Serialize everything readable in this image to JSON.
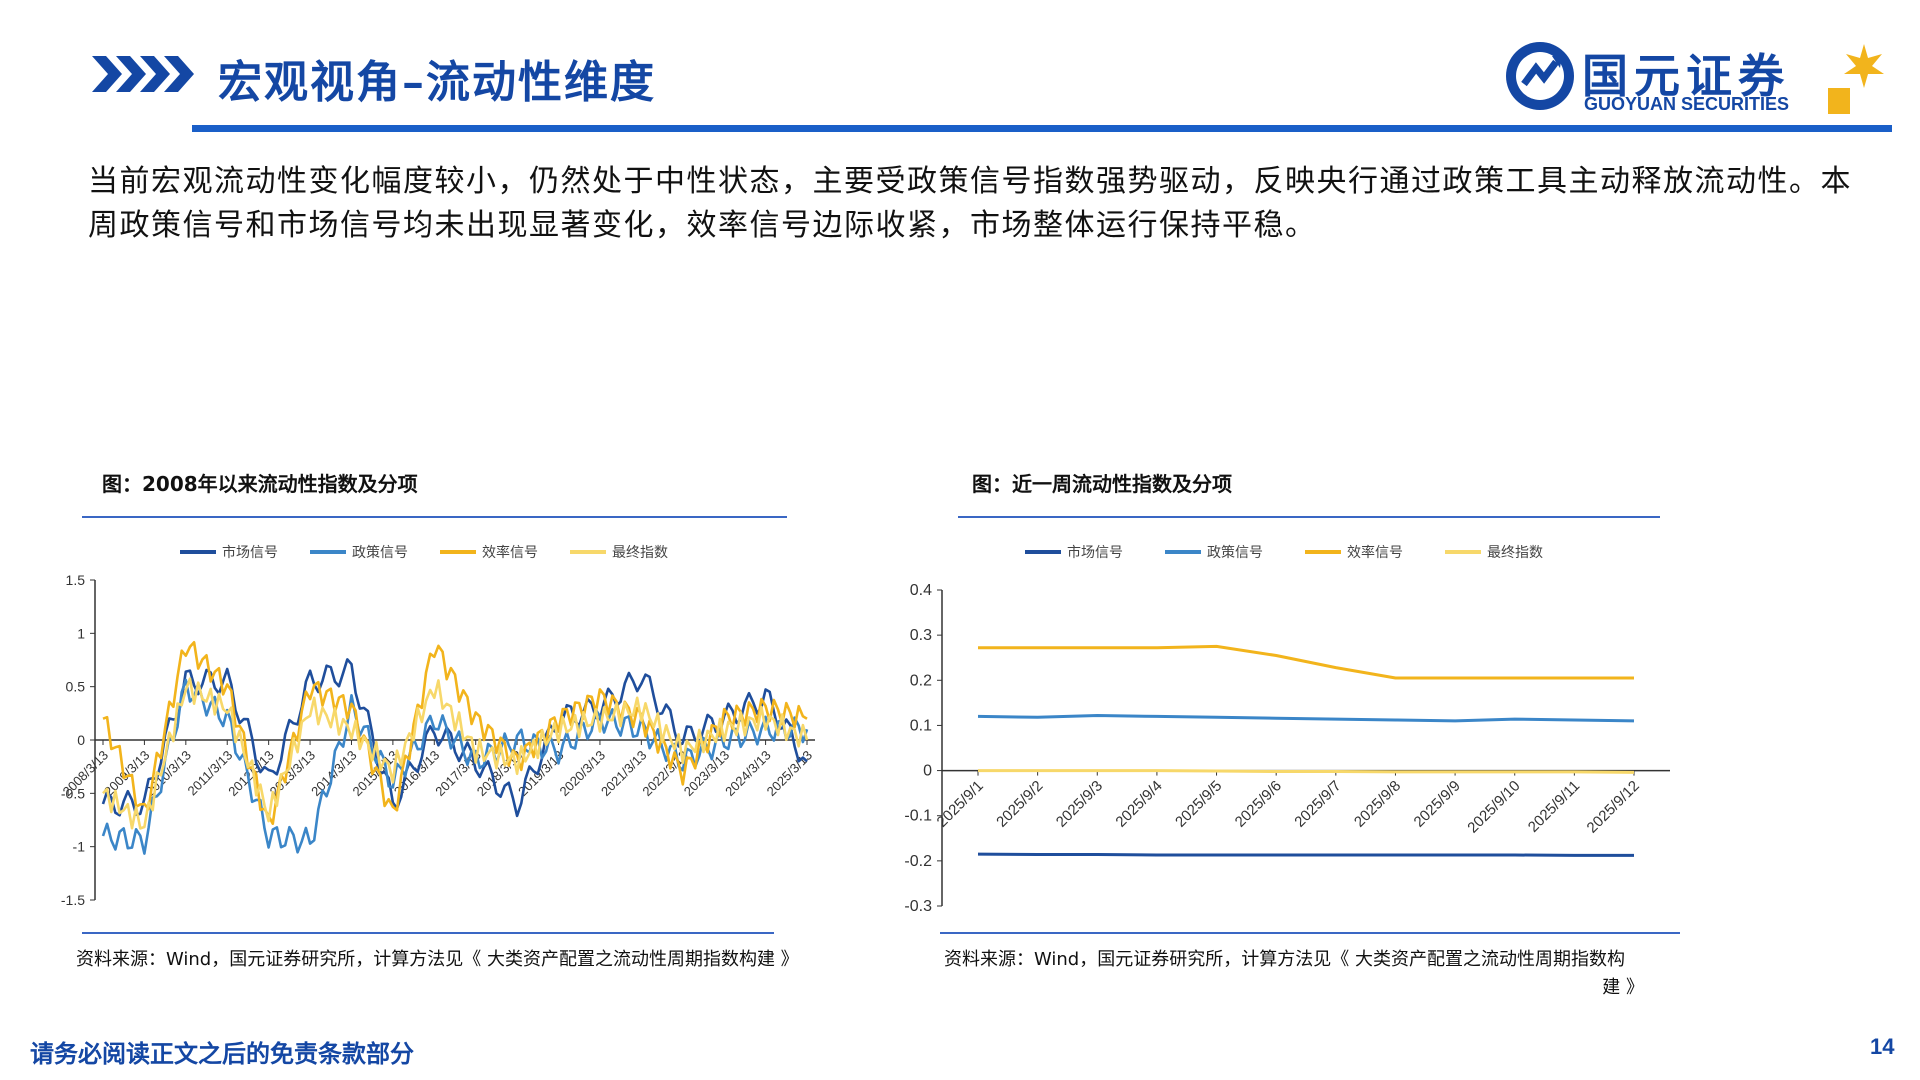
{
  "header": {
    "title": "宏观视角–流动性维度",
    "logo_cn": "国元证券",
    "logo_en": "GUOYUAN SECURITIES"
  },
  "intro": "当前宏观流动性变化幅度较小，仍然处于中性状态，主要受政策信号指数强势驱动，反映央行通过政策工具主动释放流动性。本周政策信号和市场信号均未出现显著变化，效率信号边际收紧，市场整体运行保持平稳。",
  "left_chart": {
    "title": "图：2008年以来流动性指数及分项",
    "source": "资料来源：Wind，国元证券研究所，计算方法见《 大类资产配置之流动性周期指数构建 》"
  },
  "right_chart": {
    "title": "图：近一周流动性指数及分项",
    "source_line1": "资料来源：Wind，国元证券研究所，计算方法见《 大类资产配置之流动性周期指数构",
    "source_line2": "建 》"
  },
  "footer": {
    "disclaimer": "请务必阅读正文之后的免责条款部分",
    "page": "14"
  },
  "colors": {
    "market": "#1f4e9c",
    "policy": "#3b86c8",
    "efficiency": "#f2b41c",
    "final": "#f7d86a",
    "brand": "#1447a4"
  },
  "chart_data": [
    {
      "type": "line",
      "x": [
        "2008/3/13",
        "2009/3/13",
        "2010/3/13",
        "2011/3/13",
        "2012/3/13",
        "2013/3/13",
        "2014/3/13",
        "2015/3/13",
        "2016/3/13",
        "2017/3/13",
        "2018/3/13",
        "2019/3/13",
        "2020/3/13",
        "2021/3/13",
        "2022/3/13",
        "2023/3/13",
        "2024/3/13",
        "2025/3/13"
      ],
      "ylim": [
        -1.5,
        1.5
      ],
      "yticks": [
        "1.5",
        "1",
        "0.5",
        "0",
        "-0.5",
        "-1",
        "-1.5"
      ],
      "legend_position": "top",
      "series": [
        {
          "name": "市场信号",
          "values": [
            -0.6,
            -0.6,
            0.55,
            0.55,
            -0.4,
            0.55,
            0.65,
            -0.6,
            0.1,
            -0.2,
            -0.6,
            0.2,
            0.3,
            0.6,
            0.0,
            0.2,
            0.4,
            -0.2
          ]
        },
        {
          "name": "政策信号",
          "values": [
            -0.9,
            -0.95,
            0.5,
            0.2,
            -0.9,
            -0.95,
            0.3,
            -0.4,
            0.2,
            -0.2,
            0.0,
            -0.1,
            0.2,
            0.1,
            -0.2,
            0.0,
            0.1,
            0.1
          ]
        },
        {
          "name": "效率信号",
          "values": [
            0.2,
            -0.7,
            0.9,
            0.5,
            -0.8,
            0.5,
            0.3,
            -0.7,
            0.9,
            0.2,
            -0.2,
            0.2,
            0.4,
            0.2,
            -0.3,
            0.2,
            0.3,
            0.2
          ]
        },
        {
          "name": "最终指数",
          "values": [
            -0.5,
            -0.8,
            0.5,
            0.3,
            -0.7,
            0.3,
            0.1,
            -0.3,
            0.5,
            -0.1,
            -0.2,
            0.1,
            0.2,
            0.3,
            -0.1,
            0.1,
            0.2,
            0.0
          ]
        }
      ]
    },
    {
      "type": "line",
      "x": [
        "2025/9/1",
        "2025/9/2",
        "2025/9/3",
        "2025/9/4",
        "2025/9/5",
        "2025/9/6",
        "2025/9/7",
        "2025/9/8",
        "2025/9/9",
        "2025/9/10",
        "2025/9/11",
        "2025/9/12"
      ],
      "ylim": [
        -0.3,
        0.4
      ],
      "yticks": [
        "0.4",
        "0.3",
        "0.2",
        "0.1",
        "0",
        "-0.1",
        "-0.2",
        "-0.3"
      ],
      "legend_position": "top",
      "series": [
        {
          "name": "市场信号",
          "values": [
            -0.185,
            -0.186,
            -0.186,
            -0.187,
            -0.187,
            -0.187,
            -0.187,
            -0.187,
            -0.187,
            -0.187,
            -0.188,
            -0.188
          ]
        },
        {
          "name": "政策信号",
          "values": [
            0.12,
            0.118,
            0.122,
            0.12,
            0.118,
            0.116,
            0.114,
            0.112,
            0.11,
            0.114,
            0.112,
            0.11
          ]
        },
        {
          "name": "效率信号",
          "values": [
            0.272,
            0.272,
            0.272,
            0.272,
            0.275,
            0.255,
            0.228,
            0.205,
            0.205,
            0.205,
            0.205,
            0.205
          ]
        },
        {
          "name": "最终指数",
          "values": [
            0.0,
            0.0,
            0.0,
            0.0,
            -0.001,
            -0.002,
            -0.002,
            -0.003,
            -0.003,
            -0.003,
            -0.003,
            -0.004
          ]
        }
      ]
    }
  ]
}
